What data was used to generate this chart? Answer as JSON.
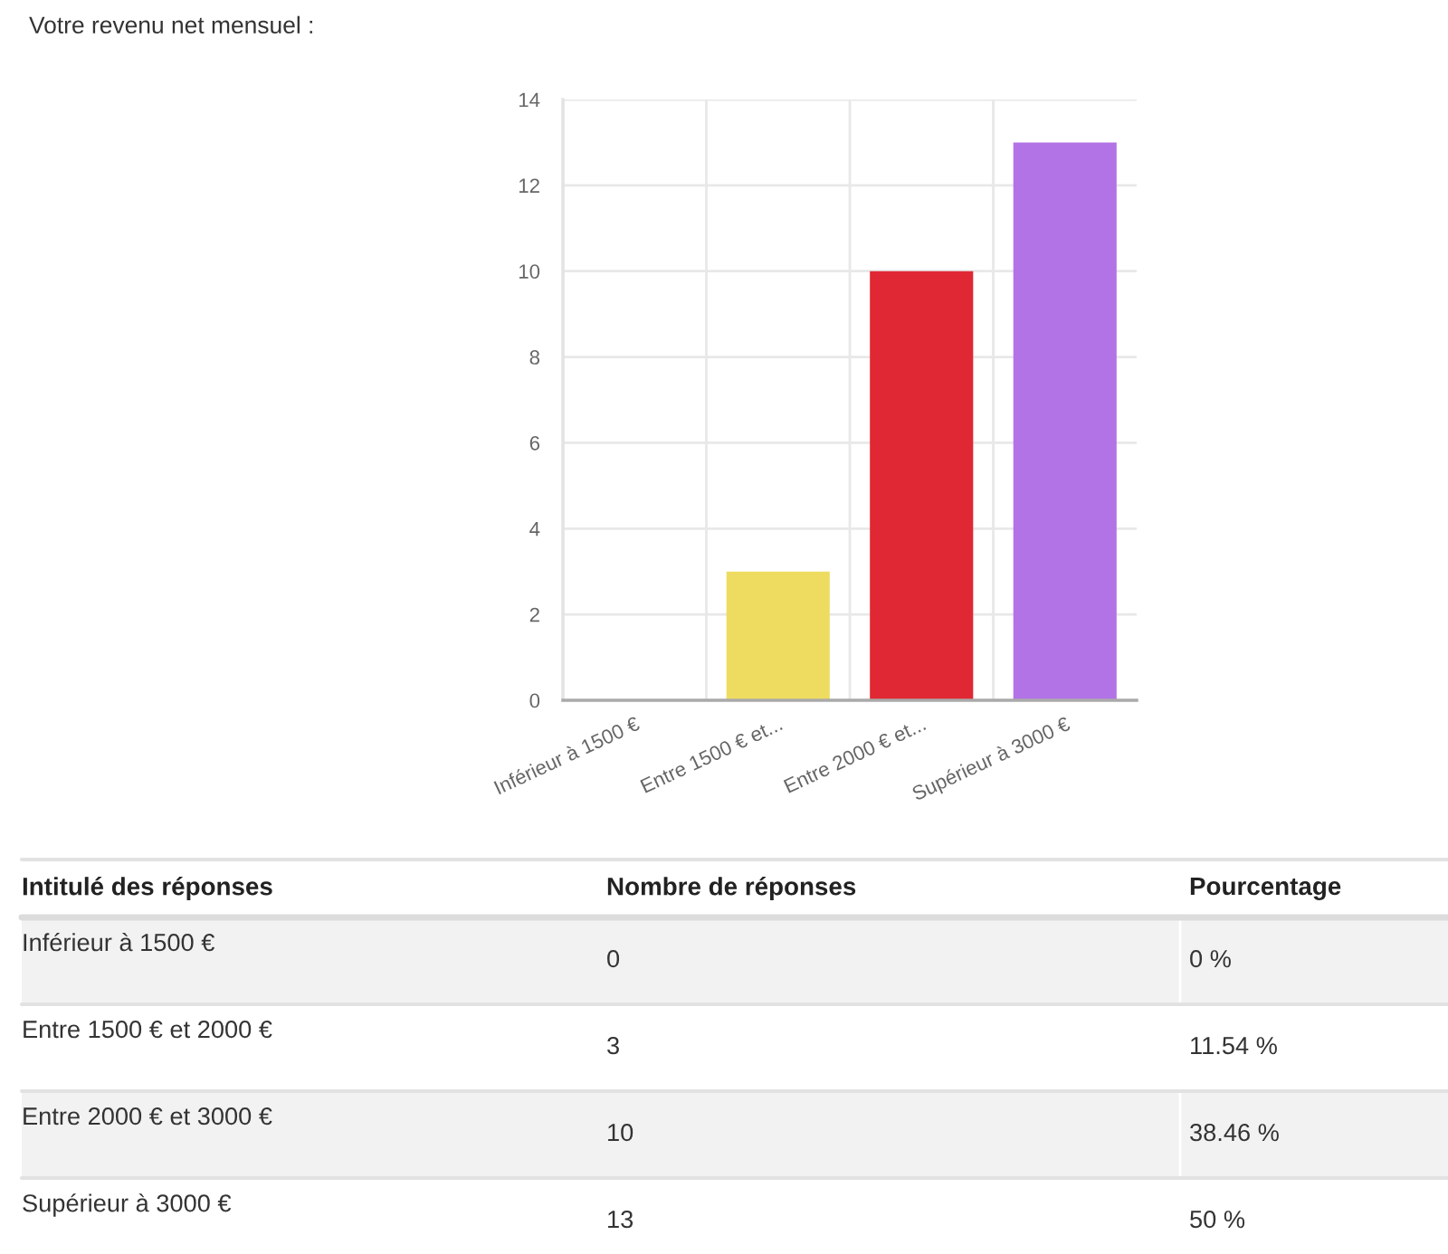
{
  "chart_data": [
    {
      "type": "bar",
      "categories": [
        "Inférieur à 1500 €",
        "Entre 1500 € et...",
        "Entre 2000 € et...",
        "Supérieur à 3000 €"
      ],
      "values": [
        0,
        3,
        10,
        13
      ],
      "colors": [
        null,
        "#eedc60",
        "#e02834",
        "#b273e6"
      ],
      "ylim": [
        0,
        14
      ],
      "yticks": [
        0,
        2,
        4,
        6,
        8,
        10,
        12,
        14
      ],
      "grid": true
    },
    {
      "type": "other",
      "title": "Votre revenu net mensuel :",
      "ylabel": "Intitulé des réponses",
      "categories": [
        "Inférieur à 1500 €",
        "Entre 1500 € et 2000 €",
        "Entre 2000 € et 3000 €",
        "Supérieur à 3000 €"
      ],
      "series": [
        {
          "name": "Nombre de réponses",
          "values": [
            0,
            3,
            10,
            13
          ]
        },
        {
          "name": "Pourcentage",
          "values": [
            0,
            11.54,
            38.46,
            50
          ],
          "value_labels": [
            "0 %",
            "11.54 %",
            "38.46 %",
            "50 %"
          ]
        }
      ],
      "data_labels": true
    }
  ]
}
